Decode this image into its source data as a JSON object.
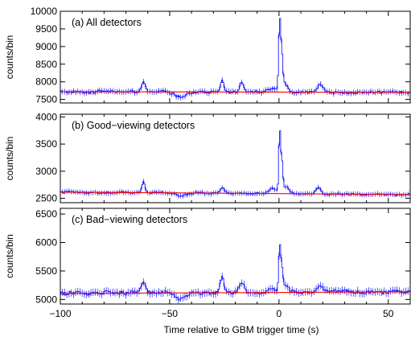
{
  "chart_data": {
    "type": "line",
    "xlabel": "Time relative to GBM trigger time (s)",
    "xlim": [
      -100,
      60
    ],
    "x_ticks": [
      -100,
      -50,
      0,
      50
    ],
    "x_tick_labels": [
      "−100",
      "−50",
      "0",
      "50"
    ],
    "bin_width_s": 0.5,
    "panels": [
      {
        "id": "a",
        "title": "(a) All detectors",
        "ylabel": "counts/bin",
        "ylim": [
          7400,
          10000
        ],
        "y_ticks": [
          7500,
          8000,
          8500,
          9000,
          9500,
          10000
        ],
        "colors": {
          "data": "#1a1aff",
          "background": "#ff0000"
        },
        "background_fit": [
          [
            -100,
            7720
          ],
          [
            60,
            7700
          ]
        ],
        "baseline": 7700,
        "noise_amp": 60,
        "features": [
          {
            "t": -62,
            "amp": 270,
            "width": 0.9
          },
          {
            "t": -26,
            "amp": 330,
            "width": 0.8
          },
          {
            "t": -17,
            "amp": 250,
            "width": 0.9
          },
          {
            "t": -3,
            "amp": 110,
            "width": 1.8
          },
          {
            "t": 0.3,
            "amp": 1950,
            "width": 0.45
          },
          {
            "t": 1.3,
            "amp": 1000,
            "width": 0.5
          },
          {
            "t": 3.0,
            "amp": 210,
            "width": 1.3
          },
          {
            "t": 19,
            "amp": 220,
            "width": 1.2
          },
          {
            "t": -45,
            "amp": -130,
            "width": 2.5
          }
        ]
      },
      {
        "id": "b",
        "title": "(b) Good−viewing detectors",
        "ylabel": "counts/bin",
        "ylim": [
          2420,
          4050
        ],
        "y_ticks": [
          2500,
          3000,
          3500,
          4000
        ],
        "colors": {
          "data": "#1a1aff",
          "background": "#ff0000"
        },
        "background_fit": [
          [
            -100,
            2615
          ],
          [
            60,
            2570
          ]
        ],
        "baseline": 2590,
        "noise_amp": 28,
        "features": [
          {
            "t": -62,
            "amp": 200,
            "width": 0.7
          },
          {
            "t": -26,
            "amp": 110,
            "width": 0.9
          },
          {
            "t": -3,
            "amp": 90,
            "width": 1.5
          },
          {
            "t": 0.3,
            "amp": 1120,
            "width": 0.4
          },
          {
            "t": 1.3,
            "amp": 600,
            "width": 0.5
          },
          {
            "t": 3.5,
            "amp": 120,
            "width": 1.2
          },
          {
            "t": 18,
            "amp": 120,
            "width": 1.2
          },
          {
            "t": -45,
            "amp": -60,
            "width": 2.5
          }
        ]
      },
      {
        "id": "c",
        "title": "(c) Bad−viewing detectors",
        "ylabel": "counts/bin",
        "ylim": [
          4920,
          6600
        ],
        "y_ticks": [
          5000,
          5500,
          6000,
          6500
        ],
        "colors": {
          "data": "#1a1aff",
          "background": "#ff0000"
        },
        "background_fit": [
          [
            -100,
            5105
          ],
          [
            60,
            5135
          ]
        ],
        "baseline": 5120,
        "noise_amp": 50,
        "features": [
          {
            "t": -62,
            "amp": 200,
            "width": 1.0
          },
          {
            "t": -26,
            "amp": 250,
            "width": 0.8
          },
          {
            "t": -17,
            "amp": 180,
            "width": 1.0
          },
          {
            "t": -3,
            "amp": 90,
            "width": 1.8
          },
          {
            "t": 0.3,
            "amp": 760,
            "width": 0.45
          },
          {
            "t": 1.3,
            "amp": 400,
            "width": 0.5
          },
          {
            "t": 3.0,
            "amp": 130,
            "width": 1.3
          },
          {
            "t": 19,
            "amp": 150,
            "width": 1.2
          },
          {
            "t": -45,
            "amp": -90,
            "width": 2.5
          }
        ]
      }
    ]
  }
}
